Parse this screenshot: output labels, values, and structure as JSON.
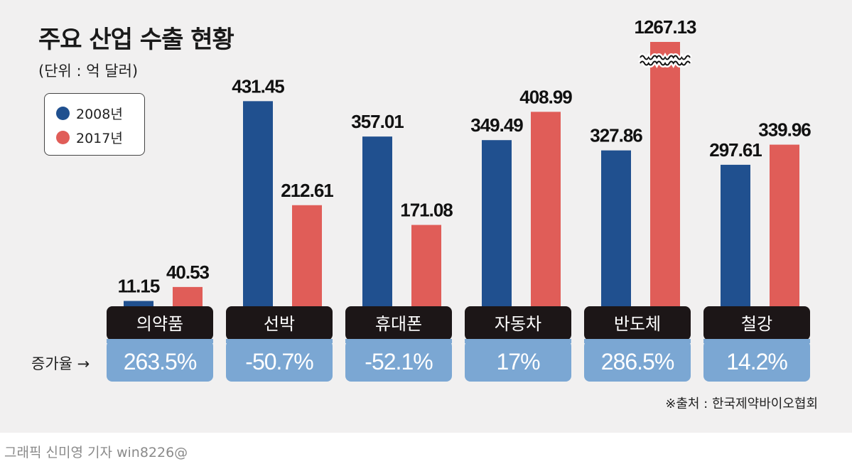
{
  "title": "주요 산업 수출 현황",
  "unit": "(단위 : 억 달러)",
  "increase_label": "증가율 →",
  "source": "※출처 : 한국제약바이오협회",
  "credit": "그래픽 신미영 기자 win8226@",
  "colors": {
    "series_2008": "#20508f",
    "series_2017": "#e05d58",
    "category_bg": "#1c1617",
    "rate_bg": "#7ba7d3",
    "background": "#f1f0f0"
  },
  "chart_data": {
    "type": "bar",
    "title": "주요 산업 수출 현황",
    "unit": "(단위 : 억 달러)",
    "categories": [
      "의약품",
      "선박",
      "휴대폰",
      "자동차",
      "반도체",
      "철강"
    ],
    "series": [
      {
        "name": "2008년",
        "values": [
          11.15,
          431.45,
          357.01,
          349.49,
          327.86,
          297.61
        ]
      },
      {
        "name": "2017년",
        "values": [
          40.53,
          212.61,
          171.08,
          408.99,
          1267.13,
          339.96
        ]
      }
    ],
    "value_labels": [
      [
        "11.15",
        "431.45",
        "357.01",
        "349.49",
        "327.86",
        "297.61"
      ],
      [
        "40.53",
        "212.61",
        "171.08",
        "408.99",
        "1267.13",
        "339.96"
      ]
    ],
    "growth_rates": [
      "263.5%",
      "-50.7%",
      "-52.1%",
      "17%",
      "286.5%",
      "14.2%"
    ],
    "axis_break": {
      "category": "반도체",
      "series": "2017년"
    },
    "legend": {
      "position": "top-left",
      "entries": [
        "2008년",
        "2017년"
      ]
    },
    "grid": false,
    "yaxis_visible": false
  }
}
